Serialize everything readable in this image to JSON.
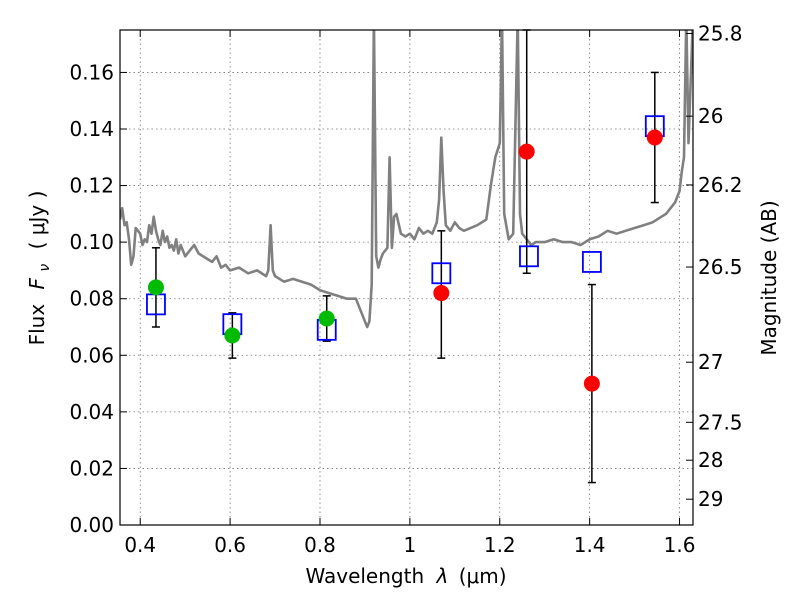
{
  "chart_data": {
    "type": "scatter",
    "xlabel_prefix": "Wavelength",
    "xlabel_symbol": "λ",
    "xlabel_unit": "(μm)",
    "ylabel_prefix": "Flux",
    "ylabel_symbol": "F",
    "ylabel_subscript": "ν",
    "ylabel_unit": "( μJy )",
    "y2label": "Magnitude (AB)",
    "xlim": [
      0.355,
      1.63
    ],
    "ylim": [
      0.0,
      0.175
    ],
    "xticks": [
      0.4,
      0.6,
      0.8,
      1.0,
      1.2,
      1.4,
      1.6
    ],
    "xtick_labels": [
      "0.4",
      "0.6",
      "0.8",
      "1",
      "1.2",
      "1.4",
      "1.6"
    ],
    "yticks": [
      0.0,
      0.02,
      0.04,
      0.06,
      0.08,
      0.1,
      0.12,
      0.14,
      0.16
    ],
    "ytick_labels": [
      "0.00",
      "0.02",
      "0.04",
      "0.06",
      "0.08",
      "0.10",
      "0.12",
      "0.14",
      "0.16"
    ],
    "y2ticks": [
      {
        "label": "25.8",
        "mag": 25.8
      },
      {
        "label": "26",
        "mag": 26.0
      },
      {
        "label": "26.2",
        "mag": 26.2
      },
      {
        "label": "26.5",
        "mag": 26.5
      },
      {
        "label": "27",
        "mag": 27.0
      },
      {
        "label": "27.5",
        "mag": 27.5
      },
      {
        "label": "28",
        "mag": 28.0
      },
      {
        "label": "29",
        "mag": 29.0
      }
    ],
    "grid": true,
    "series": [
      {
        "kind": "model_spectrum",
        "color": "#808080",
        "x": [
          0.355,
          0.36,
          0.365,
          0.37,
          0.375,
          0.38,
          0.385,
          0.39,
          0.395,
          0.4,
          0.405,
          0.41,
          0.415,
          0.42,
          0.425,
          0.43,
          0.435,
          0.44,
          0.445,
          0.45,
          0.455,
          0.46,
          0.465,
          0.47,
          0.475,
          0.48,
          0.485,
          0.49,
          0.5,
          0.51,
          0.52,
          0.53,
          0.54,
          0.55,
          0.56,
          0.57,
          0.58,
          0.59,
          0.6,
          0.62,
          0.64,
          0.66,
          0.68,
          0.685,
          0.69,
          0.695,
          0.7,
          0.72,
          0.74,
          0.76,
          0.78,
          0.8,
          0.82,
          0.84,
          0.86,
          0.88,
          0.9,
          0.905,
          0.91,
          0.915,
          0.92,
          0.925,
          0.93,
          0.935,
          0.94,
          0.95,
          0.955,
          0.96,
          0.965,
          0.97,
          0.98,
          0.99,
          1.0,
          1.01,
          1.02,
          1.03,
          1.04,
          1.05,
          1.06,
          1.065,
          1.07,
          1.075,
          1.08,
          1.09,
          1.1,
          1.11,
          1.12,
          1.15,
          1.17,
          1.18,
          1.19,
          1.2,
          1.205,
          1.21,
          1.22,
          1.23,
          1.24,
          1.245,
          1.25,
          1.26,
          1.27,
          1.28,
          1.3,
          1.32,
          1.34,
          1.36,
          1.38,
          1.4,
          1.42,
          1.44,
          1.46,
          1.48,
          1.5,
          1.52,
          1.54,
          1.56,
          1.57,
          1.58,
          1.59,
          1.6,
          1.605,
          1.61,
          1.615,
          1.62,
          1.63
        ],
        "y": [
          0.108,
          0.112,
          0.106,
          0.107,
          0.101,
          0.092,
          0.095,
          0.105,
          0.104,
          0.103,
          0.099,
          0.101,
          0.1,
          0.106,
          0.103,
          0.109,
          0.104,
          0.101,
          0.099,
          0.104,
          0.1,
          0.102,
          0.098,
          0.099,
          0.097,
          0.101,
          0.096,
          0.099,
          0.095,
          0.097,
          0.099,
          0.096,
          0.095,
          0.094,
          0.093,
          0.095,
          0.091,
          0.092,
          0.09,
          0.091,
          0.089,
          0.09,
          0.088,
          0.09,
          0.106,
          0.09,
          0.088,
          0.086,
          0.087,
          0.086,
          0.085,
          0.083,
          0.082,
          0.081,
          0.08,
          0.08,
          0.072,
          0.07,
          0.072,
          0.085,
          0.18,
          0.095,
          0.091,
          0.094,
          0.096,
          0.098,
          0.13,
          0.098,
          0.109,
          0.11,
          0.103,
          0.102,
          0.103,
          0.101,
          0.105,
          0.103,
          0.104,
          0.103,
          0.107,
          0.115,
          0.137,
          0.118,
          0.106,
          0.104,
          0.107,
          0.105,
          0.104,
          0.106,
          0.108,
          0.12,
          0.13,
          0.135,
          0.18,
          0.11,
          0.101,
          0.103,
          0.18,
          0.11,
          0.103,
          0.101,
          0.099,
          0.1,
          0.1,
          0.101,
          0.1,
          0.1,
          0.099,
          0.101,
          0.102,
          0.104,
          0.103,
          0.104,
          0.105,
          0.106,
          0.107,
          0.109,
          0.11,
          0.112,
          0.114,
          0.118,
          0.125,
          0.13,
          0.18,
          0.135,
          0.18
        ]
      },
      {
        "kind": "model_photometry",
        "marker": "open-square",
        "color": "#0000ff",
        "x": [
          0.435,
          0.605,
          0.815,
          1.07,
          1.265,
          1.405,
          1.545
        ],
        "values": [
          0.078,
          0.071,
          0.069,
          0.089,
          0.095,
          0.093,
          0.141
        ]
      },
      {
        "kind": "observed_green",
        "marker": "filled-circle",
        "color": "#00bb00",
        "x": [
          0.435,
          0.605,
          0.815
        ],
        "values": [
          0.084,
          0.067,
          0.073
        ],
        "err_low": [
          0.07,
          0.059,
          0.065
        ],
        "err_high": [
          0.098,
          0.075,
          0.081
        ]
      },
      {
        "kind": "observed_red",
        "marker": "filled-circle",
        "color": "#ff0000",
        "x": [
          1.07,
          1.26,
          1.405,
          1.545
        ],
        "values": [
          0.082,
          0.132,
          0.05,
          0.137
        ],
        "err_low": [
          0.059,
          0.089,
          0.015,
          0.114
        ],
        "err_high": [
          0.104,
          0.175,
          0.085,
          0.16
        ]
      }
    ]
  }
}
